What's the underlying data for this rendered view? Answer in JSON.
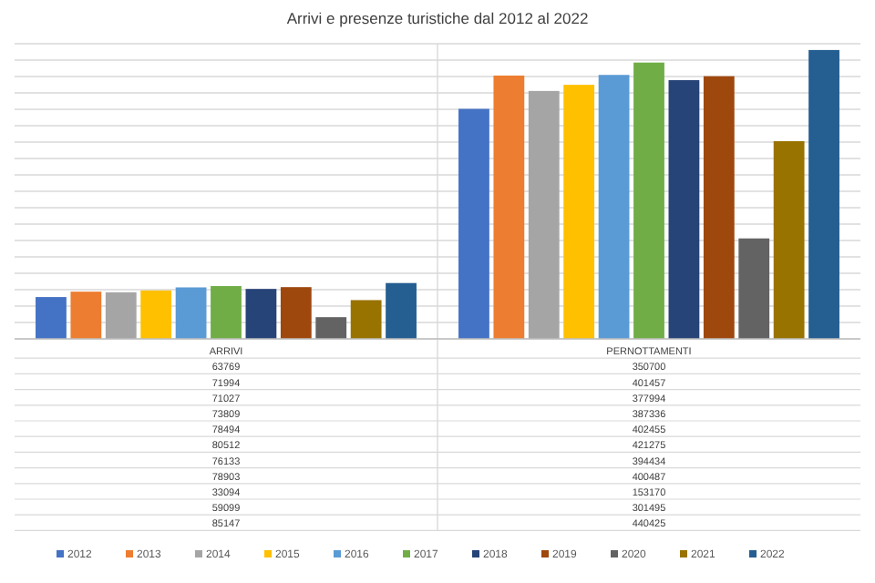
{
  "chart_data": {
    "type": "bar",
    "title": "Arrivi e presenze turistiche dal 2012 al 2022",
    "categories": [
      "ARRIVI",
      "PERNOTTAMENTI"
    ],
    "series": [
      {
        "name": "2012",
        "color": "#4472c4",
        "values": [
          63769,
          350700
        ]
      },
      {
        "name": "2013",
        "color": "#ed7d31",
        "values": [
          71994,
          401457
        ]
      },
      {
        "name": "2014",
        "color": "#a5a5a5",
        "values": [
          71027,
          377994
        ]
      },
      {
        "name": "2015",
        "color": "#ffc000",
        "values": [
          73809,
          387336
        ]
      },
      {
        "name": "2016",
        "color": "#5b9bd5",
        "values": [
          78494,
          402455
        ]
      },
      {
        "name": "2017",
        "color": "#70ad47",
        "values": [
          80512,
          421275
        ]
      },
      {
        "name": "2018",
        "color": "#264478",
        "values": [
          76133,
          394434
        ]
      },
      {
        "name": "2019",
        "color": "#9e480e",
        "values": [
          78903,
          400487
        ]
      },
      {
        "name": "2020",
        "color": "#636363",
        "values": [
          33094,
          153170
        ]
      },
      {
        "name": "2021",
        "color": "#997300",
        "values": [
          59099,
          301495
        ]
      },
      {
        "name": "2022",
        "color": "#255e91",
        "values": [
          85147,
          440425
        ]
      }
    ],
    "ylim": [
      0,
      450000
    ],
    "yticks": [
      {
        "value": 0,
        "label": null
      },
      {
        "value": 25000,
        "label": null
      },
      {
        "value": 50000,
        "label": null
      },
      {
        "value": 75000,
        "label": null
      },
      {
        "value": 100000,
        "label": null
      },
      {
        "value": 125000,
        "label": null
      },
      {
        "value": 150000,
        "label": null
      },
      {
        "value": 175000,
        "label": null
      },
      {
        "value": 200000,
        "label": null
      },
      {
        "value": 225000,
        "label": null
      },
      {
        "value": 250000,
        "label": null
      },
      {
        "value": 275000,
        "label": null
      },
      {
        "value": 300000,
        "label": null
      },
      {
        "value": 325000,
        "label": null
      },
      {
        "value": 350000,
        "label": null
      },
      {
        "value": 375000,
        "label": null
      },
      {
        "value": 400000,
        "label": null
      },
      {
        "value": 425000,
        "label": null
      },
      {
        "value": 450000,
        "label": null
      }
    ],
    "grid": "y",
    "legend": "bottom",
    "data_labels": true
  }
}
